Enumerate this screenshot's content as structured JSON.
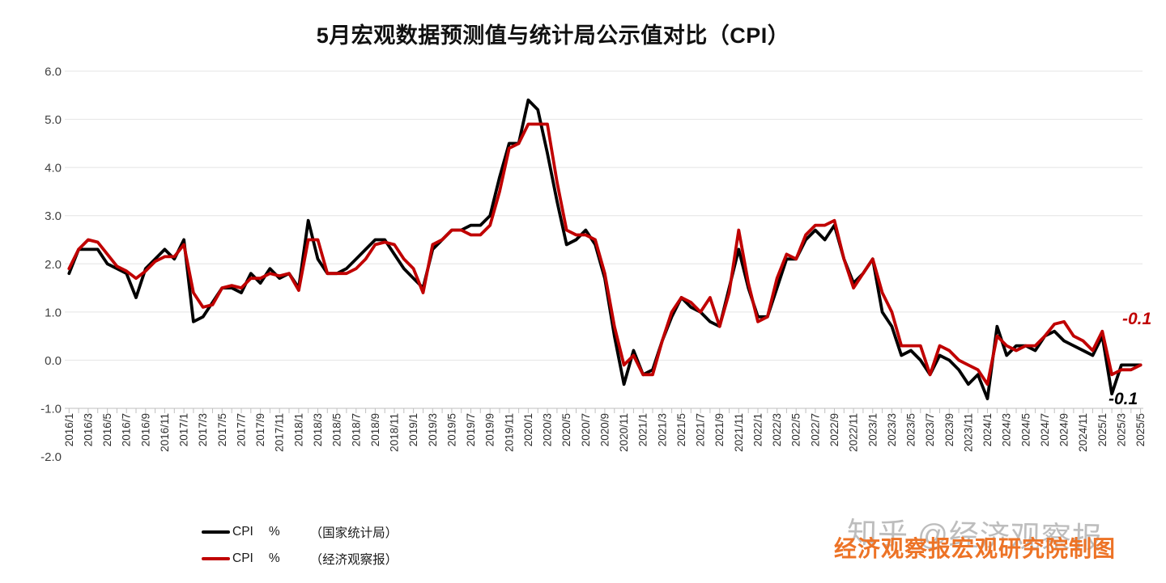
{
  "title": "5月宏观数据预测值与统计局公示值对比（CPI）",
  "watermark": "知乎 @经济观察报",
  "credit": "经济观察报宏观研究院制图",
  "legend": {
    "items": [
      {
        "metric": "CPI",
        "unit": "%",
        "source": "（国家统计局）",
        "color": "#000000"
      },
      {
        "metric": "CPI",
        "unit": "%",
        "source": "（经济观察报）",
        "color": "#c00000"
      }
    ]
  },
  "chart_data": {
    "type": "line",
    "title": "5月宏观数据预测值与统计局公示值对比（CPI）",
    "xlabel": "",
    "ylabel": "",
    "ylim": [
      -2.0,
      6.0
    ],
    "grid": true,
    "legend_position": "bottom-left",
    "x_label_every": 2,
    "y_ticks": [
      {
        "value": 6,
        "label": "6.0"
      },
      {
        "value": 5,
        "label": "5.0"
      },
      {
        "value": 4,
        "label": "4.0"
      },
      {
        "value": 3,
        "label": "3.0"
      },
      {
        "value": 2,
        "label": "2.0"
      },
      {
        "value": 1,
        "label": "1.0"
      },
      {
        "value": 0,
        "label": "0.0"
      },
      {
        "value": -1,
        "label": "-1.0"
      },
      {
        "value": -2,
        "label": "-2.0"
      }
    ],
    "y_gridlines": [
      6,
      5,
      4,
      3,
      2,
      1,
      0
    ],
    "x": [
      "2016/1",
      "2016/2",
      "2016/3",
      "2016/4",
      "2016/5",
      "2016/6",
      "2016/7",
      "2016/8",
      "2016/9",
      "2016/10",
      "2016/11",
      "2016/12",
      "2017/1",
      "2017/2",
      "2017/3",
      "2017/4",
      "2017/5",
      "2017/6",
      "2017/7",
      "2017/8",
      "2017/9",
      "2017/10",
      "2017/11",
      "2017/12",
      "2018/1",
      "2018/2",
      "2018/3",
      "2018/4",
      "2018/5",
      "2018/6",
      "2018/7",
      "2018/8",
      "2018/9",
      "2018/10",
      "2018/11",
      "2018/12",
      "2019/1",
      "2019/2",
      "2019/3",
      "2019/4",
      "2019/5",
      "2019/6",
      "2019/7",
      "2019/8",
      "2019/9",
      "2019/10",
      "2019/11",
      "2019/12",
      "2020/1",
      "2020/2",
      "2020/3",
      "2020/4",
      "2020/5",
      "2020/6",
      "2020/7",
      "2020/8",
      "2020/9",
      "2020/10",
      "2020/11",
      "2020/12",
      "2021/1",
      "2021/2",
      "2021/3",
      "2021/4",
      "2021/5",
      "2021/6",
      "2021/7",
      "2021/8",
      "2021/9",
      "2021/10",
      "2021/11",
      "2021/12",
      "2022/1",
      "2022/2",
      "2022/3",
      "2022/4",
      "2022/5",
      "2022/6",
      "2022/7",
      "2022/8",
      "2022/9",
      "2022/10",
      "2022/11",
      "2022/12",
      "2023/1",
      "2023/2",
      "2023/3",
      "2023/4",
      "2023/5",
      "2023/6",
      "2023/7",
      "2023/8",
      "2023/9",
      "2023/10",
      "2023/11",
      "2023/12",
      "2024/1",
      "2024/2",
      "2024/3",
      "2024/4",
      "2024/5",
      "2024/6",
      "2024/7",
      "2024/8",
      "2024/9",
      "2024/10",
      "2024/11",
      "2024/12",
      "2025/1",
      "2025/2",
      "2025/3",
      "2025/4",
      "2025/5"
    ],
    "series": [
      {
        "name": "CPI % （国家统计局）",
        "color": "#000000",
        "values": [
          1.8,
          2.3,
          2.3,
          2.3,
          2.0,
          1.9,
          1.8,
          1.3,
          1.9,
          2.1,
          2.3,
          2.1,
          2.5,
          0.8,
          0.9,
          1.2,
          1.5,
          1.5,
          1.4,
          1.8,
          1.6,
          1.9,
          1.7,
          1.8,
          1.5,
          2.9,
          2.1,
          1.8,
          1.8,
          1.9,
          2.1,
          2.3,
          2.5,
          2.5,
          2.2,
          1.9,
          1.7,
          1.5,
          2.3,
          2.5,
          2.7,
          2.7,
          2.8,
          2.8,
          3.0,
          3.8,
          4.5,
          4.5,
          5.4,
          5.2,
          4.3,
          3.3,
          2.4,
          2.5,
          2.7,
          2.4,
          1.7,
          0.5,
          -0.5,
          0.2,
          -0.3,
          -0.2,
          0.4,
          0.9,
          1.3,
          1.1,
          1.0,
          0.8,
          0.7,
          1.5,
          2.3,
          1.5,
          0.9,
          0.9,
          1.5,
          2.1,
          2.1,
          2.5,
          2.7,
          2.5,
          2.8,
          2.1,
          1.6,
          1.8,
          2.1,
          1.0,
          0.7,
          0.1,
          0.2,
          0.0,
          -0.3,
          0.1,
          0.0,
          -0.2,
          -0.5,
          -0.3,
          -0.8,
          0.7,
          0.1,
          0.3,
          0.3,
          0.2,
          0.5,
          0.6,
          0.4,
          0.3,
          0.2,
          0.1,
          0.5,
          -0.7,
          -0.1,
          -0.1,
          -0.1
        ]
      },
      {
        "name": "CPI % （经济观察报）",
        "color": "#c00000",
        "values": [
          1.9,
          2.3,
          2.5,
          2.45,
          2.2,
          1.95,
          1.85,
          1.7,
          1.85,
          2.05,
          2.15,
          2.15,
          2.4,
          1.4,
          1.1,
          1.15,
          1.5,
          1.55,
          1.5,
          1.7,
          1.7,
          1.8,
          1.75,
          1.8,
          1.45,
          2.5,
          2.5,
          1.8,
          1.8,
          1.8,
          1.9,
          2.1,
          2.4,
          2.45,
          2.4,
          2.1,
          1.9,
          1.4,
          2.4,
          2.5,
          2.7,
          2.7,
          2.6,
          2.6,
          2.8,
          3.5,
          4.4,
          4.5,
          4.9,
          4.9,
          4.9,
          3.7,
          2.7,
          2.6,
          2.6,
          2.5,
          1.8,
          0.7,
          -0.1,
          0.1,
          -0.3,
          -0.3,
          0.4,
          1.0,
          1.3,
          1.2,
          1.0,
          1.3,
          0.7,
          1.4,
          2.7,
          1.6,
          0.8,
          0.9,
          1.7,
          2.2,
          2.1,
          2.6,
          2.8,
          2.8,
          2.9,
          2.1,
          1.5,
          1.8,
          2.1,
          1.4,
          1.0,
          0.3,
          0.3,
          0.3,
          -0.3,
          0.3,
          0.2,
          0.0,
          -0.1,
          -0.2,
          -0.5,
          0.5,
          0.3,
          0.2,
          0.3,
          0.3,
          0.5,
          0.75,
          0.8,
          0.5,
          0.4,
          0.2,
          0.6,
          -0.3,
          -0.2,
          -0.2,
          -0.1
        ]
      }
    ],
    "annotations": [
      {
        "text": "-0.1",
        "series": "经济观察报",
        "color": "#c00000"
      },
      {
        "text": "-0.1",
        "series": "国家统计局",
        "color": "#000000"
      }
    ]
  }
}
